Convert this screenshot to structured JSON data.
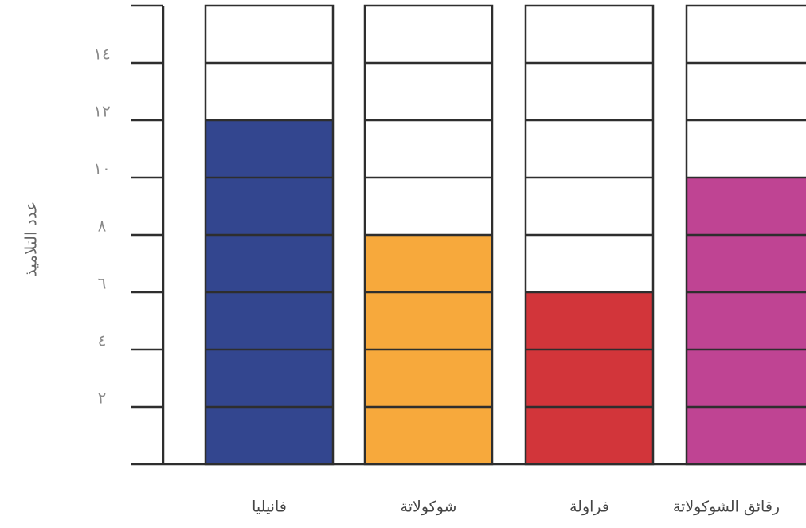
{
  "chart_data": {
    "type": "bar",
    "y_label": "عدد التلاميذ",
    "categories": [
      "فانيليا",
      "شوكولاتة",
      "فراولة",
      "رقائق الشوكولاتة"
    ],
    "values": [
      12,
      8,
      6,
      10
    ],
    "colors": [
      "#33468f",
      "#f7a93c",
      "#d2353a",
      "#bf4493"
    ],
    "ylim": [
      0,
      16
    ],
    "yticks": [
      {
        "value": 2,
        "label": "٢"
      },
      {
        "value": 4,
        "label": "٤"
      },
      {
        "value": 6,
        "label": "٦"
      },
      {
        "value": 8,
        "label": "٨"
      },
      {
        "value": 10,
        "label": "١٠"
      },
      {
        "value": 12,
        "label": "١٢"
      },
      {
        "value": 14,
        "label": "١٤"
      }
    ],
    "grid": true
  }
}
